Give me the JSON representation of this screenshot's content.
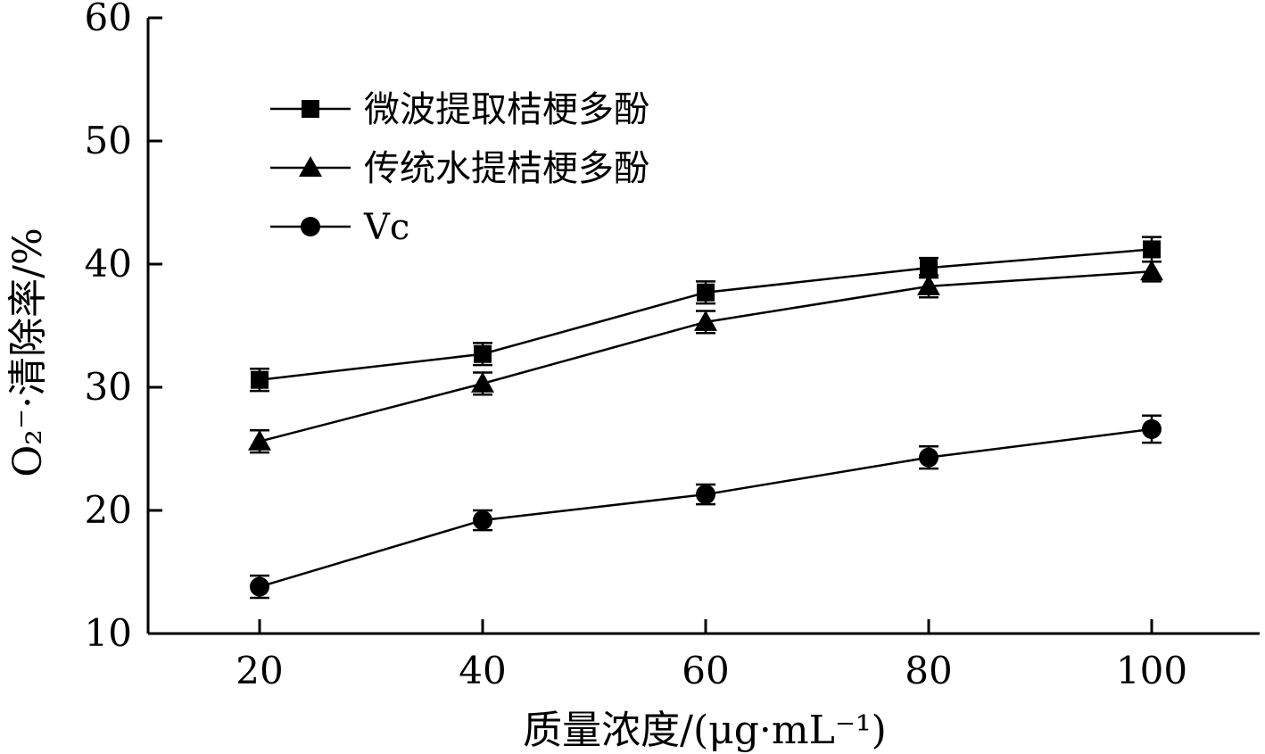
{
  "chart_data": {
    "type": "line",
    "xlabel": "质量浓度/(μg·mL⁻¹)",
    "ylabel": "O₂⁻·清除率/%",
    "x": [
      20,
      40,
      60,
      80,
      100
    ],
    "xlim": [
      10,
      110
    ],
    "ylim": [
      10,
      60
    ],
    "xticks": [
      20,
      40,
      60,
      80,
      100
    ],
    "yticks": [
      10,
      20,
      30,
      40,
      50,
      60
    ],
    "grid": false,
    "legend_position": "top-left",
    "series": [
      {
        "name": "微波提取桔梗多酚",
        "marker": "square",
        "values": [
          30.6,
          32.7,
          37.7,
          39.7,
          41.2
        ],
        "errors": [
          0.9,
          0.9,
          0.9,
          0.8,
          1.0
        ]
      },
      {
        "name": "传统水提桔梗多酚",
        "marker": "triangle",
        "values": [
          25.6,
          30.3,
          35.3,
          38.2,
          39.4
        ],
        "errors": [
          0.9,
          0.9,
          0.9,
          0.9,
          0.8
        ]
      },
      {
        "name": "Vc",
        "marker": "circle",
        "values": [
          13.8,
          19.2,
          21.3,
          24.3,
          26.6
        ],
        "errors": [
          0.9,
          0.8,
          0.8,
          0.9,
          1.1
        ]
      }
    ]
  }
}
